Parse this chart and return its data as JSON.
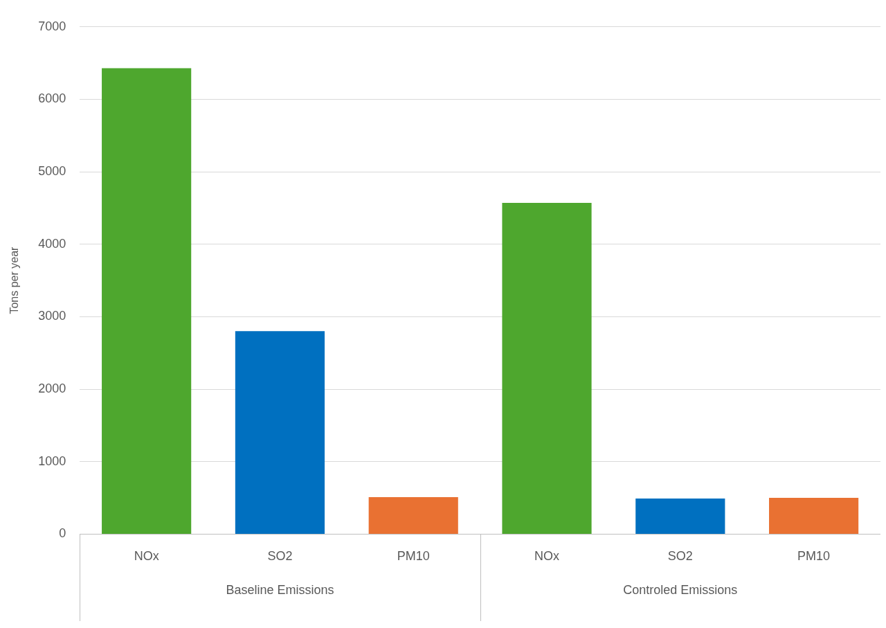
{
  "chart_data": {
    "type": "bar",
    "ylabel": "Tons per year",
    "categories": [
      "NOx",
      "SO2",
      "PM10",
      "NOx",
      "SO2",
      "PM10"
    ],
    "values": [
      6430,
      2800,
      510,
      4570,
      490,
      500
    ],
    "colors": [
      "#4ea72e",
      "#0070c0",
      "#e97132",
      "#4ea72e",
      "#0070c0",
      "#e97132"
    ],
    "ylim": [
      0,
      7000
    ],
    "yticks": [
      0,
      1000,
      2000,
      3000,
      4000,
      5000,
      6000,
      7000
    ],
    "grid": "y",
    "legend": false,
    "annotations": [
      "Baseline Emissions",
      "Controled Emissions"
    ]
  }
}
